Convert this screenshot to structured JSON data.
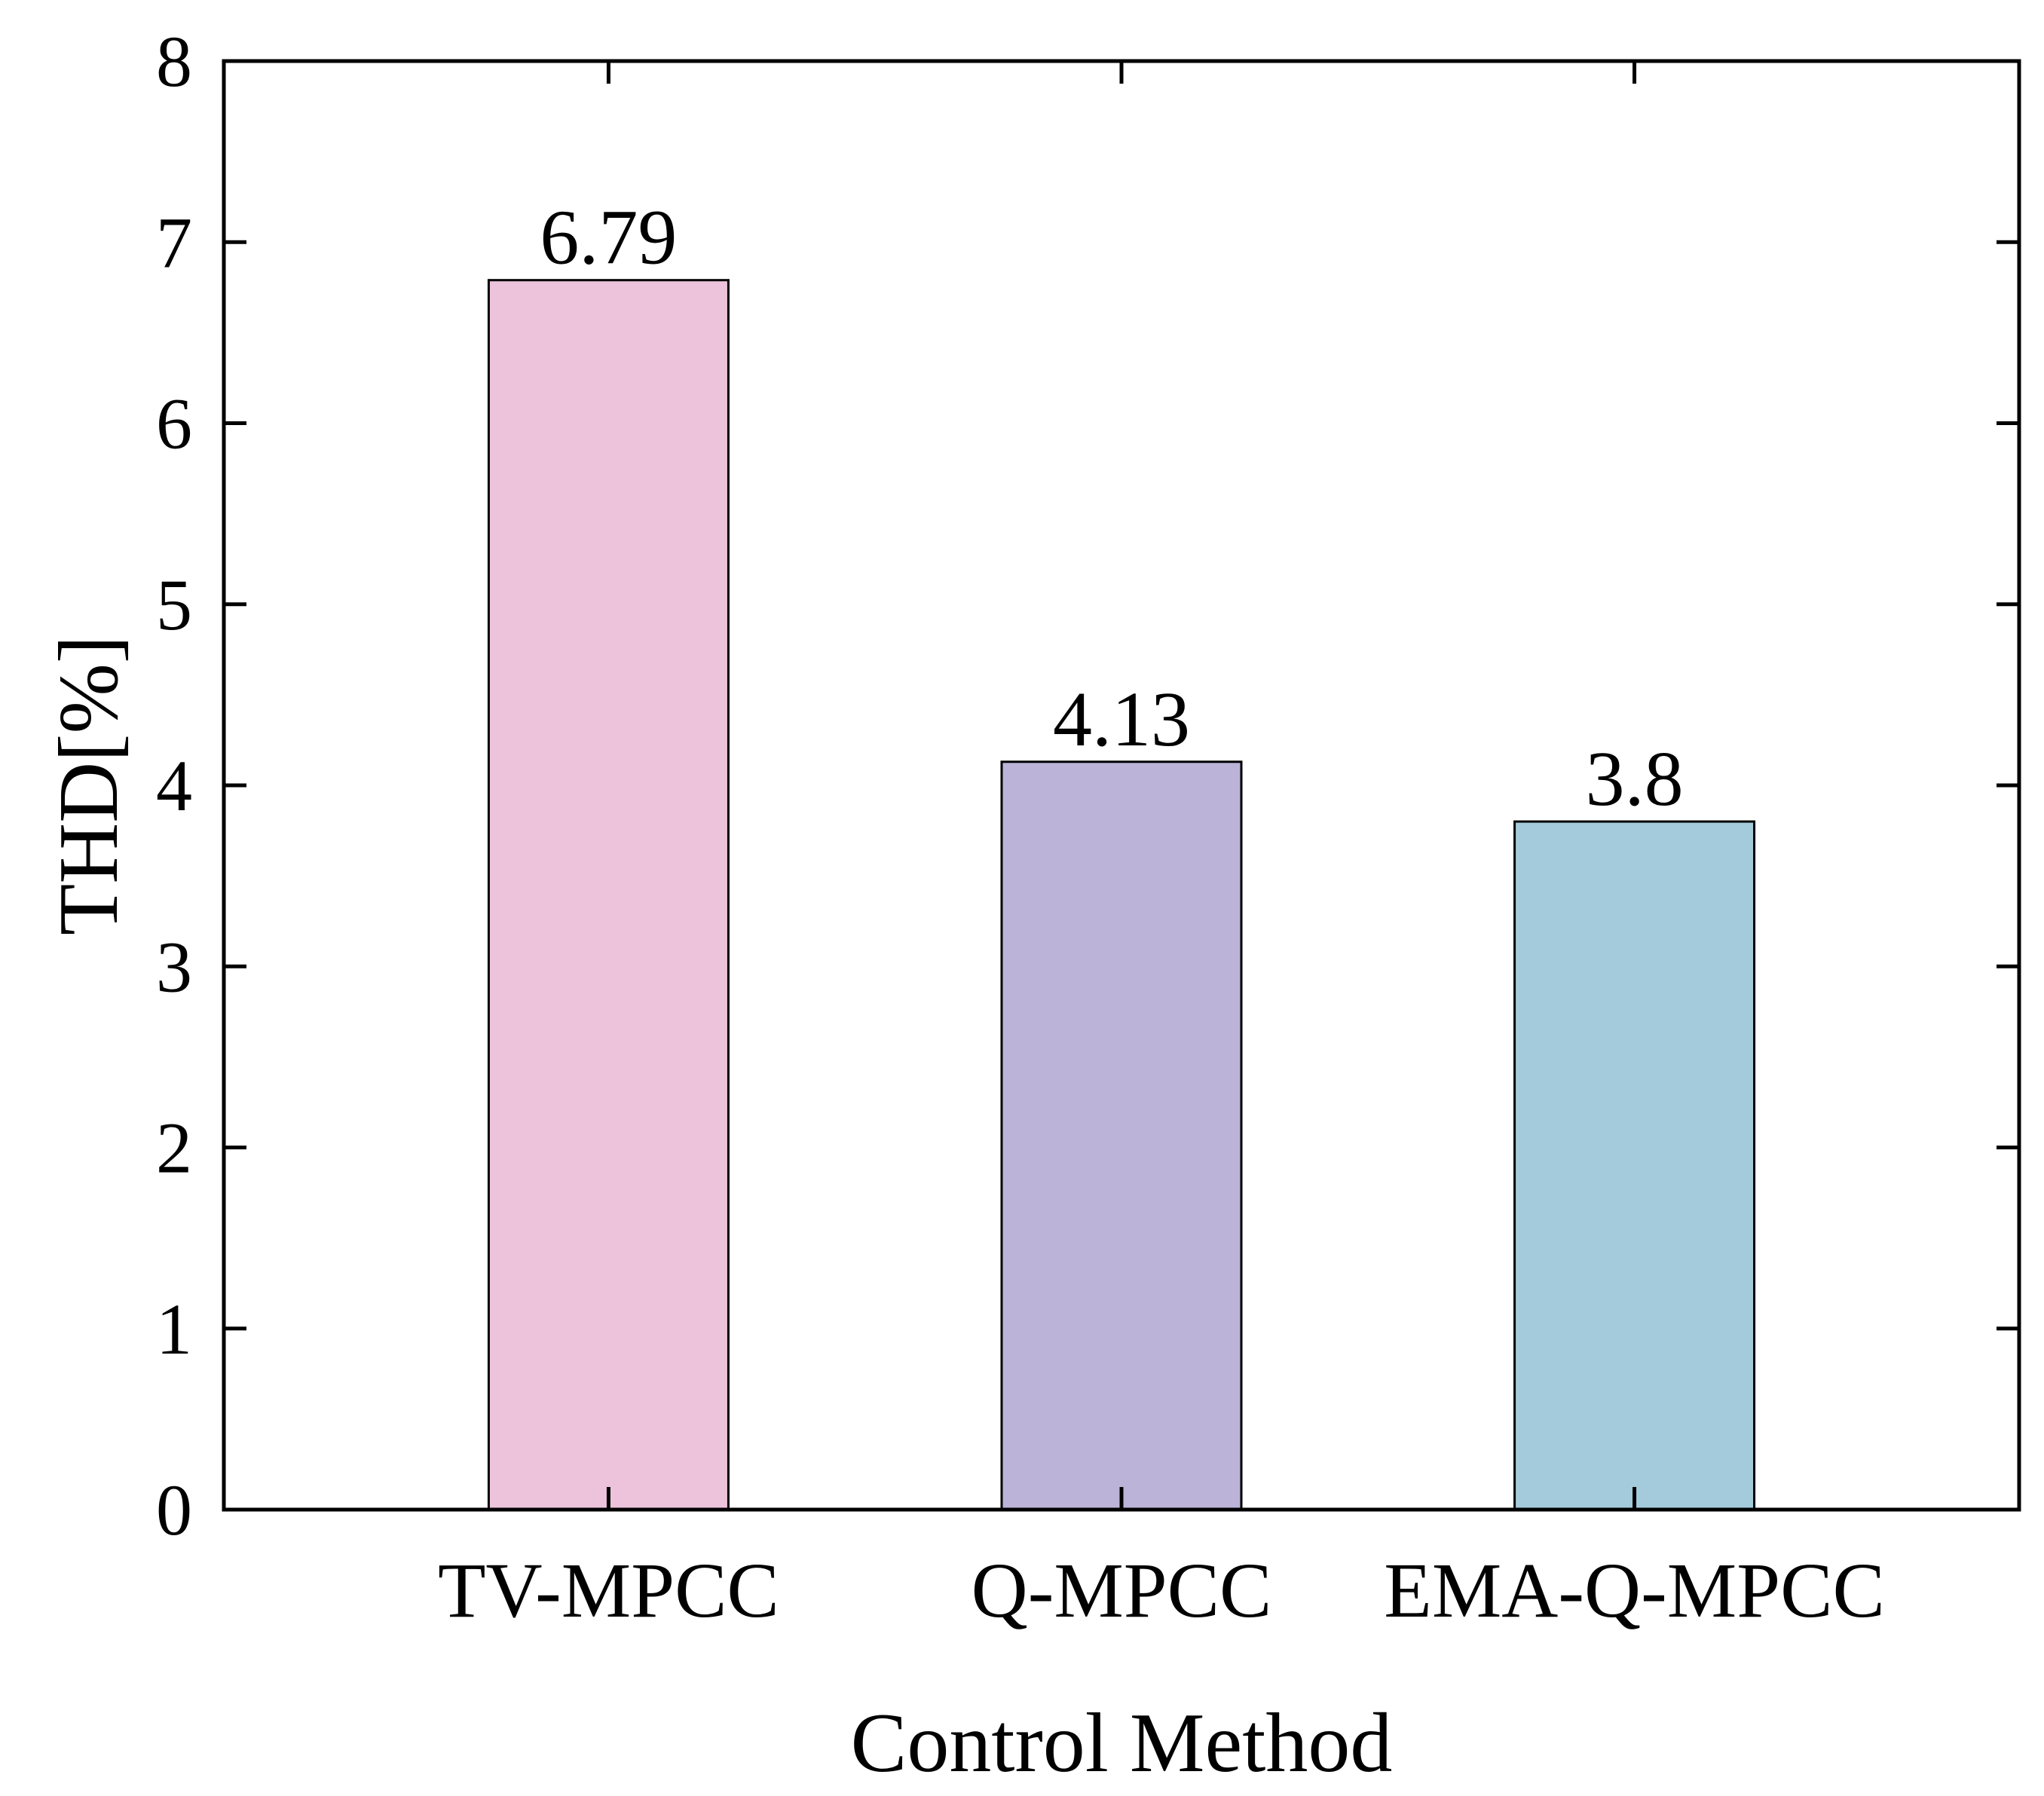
{
  "chart_data": {
    "type": "bar",
    "title": "",
    "xlabel": "Control Method",
    "ylabel": "THD[%]",
    "categories": [
      "TV-MPCC",
      "Q-MPCC",
      "EMA-Q-MPCC"
    ],
    "values": [
      6.79,
      4.13,
      3.8
    ],
    "value_labels": [
      "6.79",
      "4.13",
      "3.8"
    ],
    "colors": [
      "#edc3dc",
      "#bbb3d8",
      "#a3cbdb"
    ],
    "ylim": [
      0,
      8
    ],
    "yticks": [
      "0",
      "1",
      "2",
      "3",
      "4",
      "5",
      "6",
      "7",
      "8"
    ],
    "grid": false
  }
}
